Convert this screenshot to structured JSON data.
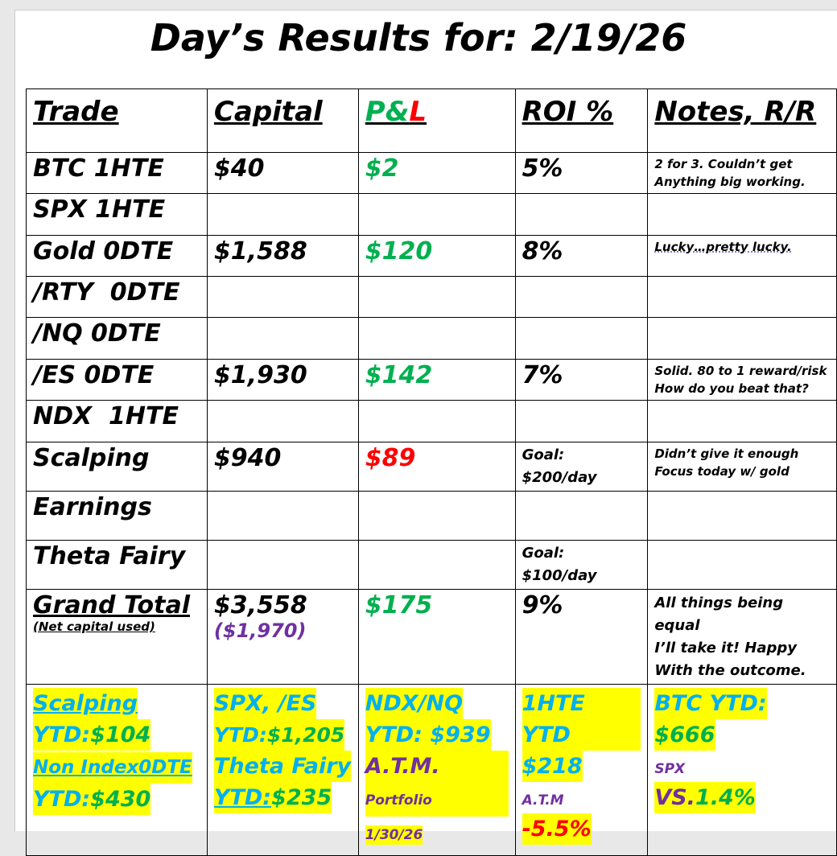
{
  "title": "Day’s Results for: 2/19/26",
  "headers": {
    "trade": "Trade",
    "capital": "Capital",
    "pnl_p": "P&",
    "pnl_l": "L",
    "roi": "ROI %",
    "notes": "Notes, R/R"
  },
  "rows": [
    {
      "trade": "BTC 1HTE",
      "capital": "$40",
      "pnl": "$2",
      "pnl_color": "green",
      "roi": "5%",
      "notes": [
        "2 for 3. Couldn’t get",
        "Anything big working."
      ]
    },
    {
      "trade": "SPX 1HTE",
      "capital": "",
      "pnl": "",
      "roi": "",
      "notes": []
    },
    {
      "trade": "Gold 0DTE",
      "capital": "$1,588",
      "pnl": "$120",
      "pnl_color": "green",
      "roi": "8%",
      "notes": [
        "Lucky…pretty lucky."
      ]
    },
    {
      "trade": "/RTY  0DTE",
      "capital": "",
      "pnl": "",
      "roi": "",
      "notes": []
    },
    {
      "trade": "/NQ 0DTE",
      "capital": "",
      "pnl": "",
      "roi": "",
      "notes": []
    },
    {
      "trade": "/ES 0DTE",
      "capital": "$1,930",
      "pnl": "$142",
      "pnl_color": "green",
      "roi": "7%",
      "notes": [
        "Solid. 80 to 1 reward/risk",
        "How do you beat that?"
      ]
    },
    {
      "trade": "NDX  1HTE",
      "capital": "",
      "pnl": "",
      "roi": "",
      "notes": []
    },
    {
      "trade": "Scalping",
      "capital": "$940",
      "pnl": "$89",
      "pnl_color": "red",
      "roi": [
        "Goal:",
        "$200/day"
      ],
      "notes": [
        "Didn’t give it enough",
        "Focus today w/ gold"
      ]
    },
    {
      "trade": "Earnings",
      "capital": "",
      "pnl": "",
      "roi": "",
      "notes": []
    },
    {
      "trade": "Theta Fairy",
      "capital": "",
      "pnl": "",
      "roi": [
        "Goal:",
        "$100/day"
      ],
      "notes": []
    }
  ],
  "total": {
    "label": "Grand Total",
    "sublabel": "(Net capital used)",
    "capital": "$3,558",
    "net_capital": "($1,970)",
    "pnl": "$175",
    "roi": "9%",
    "notes": [
      "All things being equal",
      "I’ll take it!  Happy",
      "With the outcome."
    ]
  },
  "ytd": {
    "c1": [
      "Scalping",
      "YTD: ",
      "$104",
      "Non Index0DTE",
      "YTD: ",
      "$430"
    ],
    "c2": [
      "SPX, /ES",
      "YTD: ",
      "$1,205",
      "Theta Fairy",
      "YTD:",
      "$235"
    ],
    "c3": [
      "NDX/NQ",
      "YTD: $939",
      "A.T.M.",
      "Portfolio",
      "1/30/26"
    ],
    "c4": [
      "1HTE YTD",
      "$218",
      "A.T.M",
      "-5.5%"
    ],
    "c5": [
      "BTC YTD:",
      "$666",
      "SPX",
      "VS. ",
      "1.4%"
    ]
  },
  "colors": {
    "green": "#00b050",
    "red": "#ff0000",
    "purple": "#7030a0",
    "blue": "#00b0f0",
    "highlight": "#ffff00"
  }
}
